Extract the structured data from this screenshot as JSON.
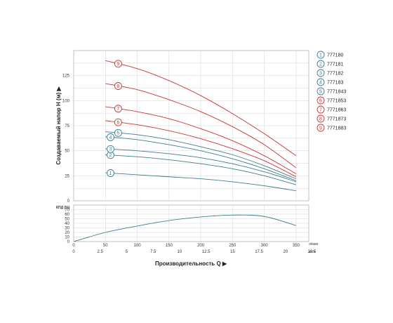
{
  "chart_data": {
    "type": "line",
    "head_chart": {
      "ylabel": "Создаваемый напор Н (м)",
      "ylim": [
        0,
        150
      ],
      "yticks": [
        "0",
        "25",
        "50",
        "75",
        "100",
        "125"
      ],
      "xlim_lpm": [
        0,
        370
      ],
      "series": [
        {
          "name": "777180",
          "badge": "1",
          "color": "#3d7d8c",
          "x": [
            50,
            100,
            150,
            200,
            250,
            300,
            350
          ],
          "y": [
            28,
            26,
            24,
            22,
            19,
            15,
            10
          ]
        },
        {
          "name": "777181",
          "badge": "2",
          "color": "#3d7d8c",
          "x": [
            50,
            100,
            150,
            200,
            250,
            300,
            350
          ],
          "y": [
            46,
            44,
            41,
            37,
            32,
            25,
            16
          ]
        },
        {
          "name": "777182",
          "badge": "3",
          "color": "#3d7d8c",
          "x": [
            50,
            100,
            150,
            200,
            250,
            300,
            350
          ],
          "y": [
            52,
            50,
            47,
            43,
            37,
            29,
            19
          ]
        },
        {
          "name": "777183",
          "badge": "4",
          "color": "#3d7d8c",
          "x": [
            50,
            100,
            150,
            200,
            250,
            300,
            350
          ],
          "y": [
            64,
            61,
            56,
            50,
            42,
            32,
            20
          ]
        },
        {
          "name": "7771843",
          "badge": "5",
          "color": "#3d7d8c",
          "x": [
            50,
            100,
            150,
            200,
            250,
            300,
            350
          ],
          "y": [
            69,
            66,
            61,
            54,
            46,
            35,
            22
          ]
        },
        {
          "name": "7771853",
          "badge": "6",
          "color": "#cc3333",
          "x": [
            50,
            100,
            150,
            200,
            250,
            300,
            350
          ],
          "y": [
            80,
            76,
            70,
            62,
            52,
            40,
            24
          ]
        },
        {
          "name": "7771863",
          "badge": "7",
          "color": "#cc3333",
          "x": [
            50,
            100,
            150,
            200,
            250,
            300,
            350
          ],
          "y": [
            94,
            89,
            82,
            72,
            60,
            45,
            27
          ]
        },
        {
          "name": "7771873",
          "badge": "8",
          "color": "#cc3333",
          "x": [
            50,
            100,
            150,
            200,
            250,
            300,
            350
          ],
          "y": [
            117,
            111,
            101,
            89,
            74,
            56,
            33
          ]
        },
        {
          "name": "7771883",
          "badge": "9",
          "color": "#cc3333",
          "x": [
            50,
            100,
            150,
            200,
            250,
            300,
            350
          ],
          "y": [
            140,
            132,
            120,
            105,
            87,
            67,
            45
          ]
        }
      ]
    },
    "efficiency_chart": {
      "ylabel": "КПД (%)",
      "ylim": [
        0,
        80
      ],
      "yticks": [
        "0",
        "10",
        "20",
        "30",
        "40",
        "50",
        "60",
        "70"
      ],
      "series": [
        {
          "name": "КПД",
          "color": "#3d7d8c",
          "x": [
            0,
            50,
            100,
            150,
            200,
            250,
            300,
            350
          ],
          "y": [
            0,
            20,
            34,
            46,
            54,
            58,
            55,
            35
          ]
        }
      ]
    },
    "x_axis": {
      "title": "Производительность Q",
      "lpm_ticks": [
        "0",
        "50",
        "100",
        "150",
        "200",
        "250",
        "300",
        "350"
      ],
      "lpm_unit": "л/мин",
      "m3h_ticks": [
        "0",
        "2.5",
        "5",
        "7.5",
        "10",
        "12.5",
        "15",
        "17.5",
        "20",
        "22.5"
      ],
      "m3h_unit": "м³/ч"
    },
    "legend": [
      {
        "badge": "1",
        "label": "777180",
        "color": "#3d7d8c"
      },
      {
        "badge": "2",
        "label": "777181",
        "color": "#3d7d8c"
      },
      {
        "badge": "3",
        "label": "777182",
        "color": "#3d7d8c"
      },
      {
        "badge": "4",
        "label": "777183",
        "color": "#3d7d8c"
      },
      {
        "badge": "5",
        "label": "7771843",
        "color": "#3d7d8c"
      },
      {
        "badge": "6",
        "label": "7771853",
        "color": "#cc3333"
      },
      {
        "badge": "7",
        "label": "7771863",
        "color": "#cc3333"
      },
      {
        "badge": "8",
        "label": "7771873",
        "color": "#cc3333"
      },
      {
        "badge": "9",
        "label": "7771883",
        "color": "#cc3333"
      }
    ]
  }
}
